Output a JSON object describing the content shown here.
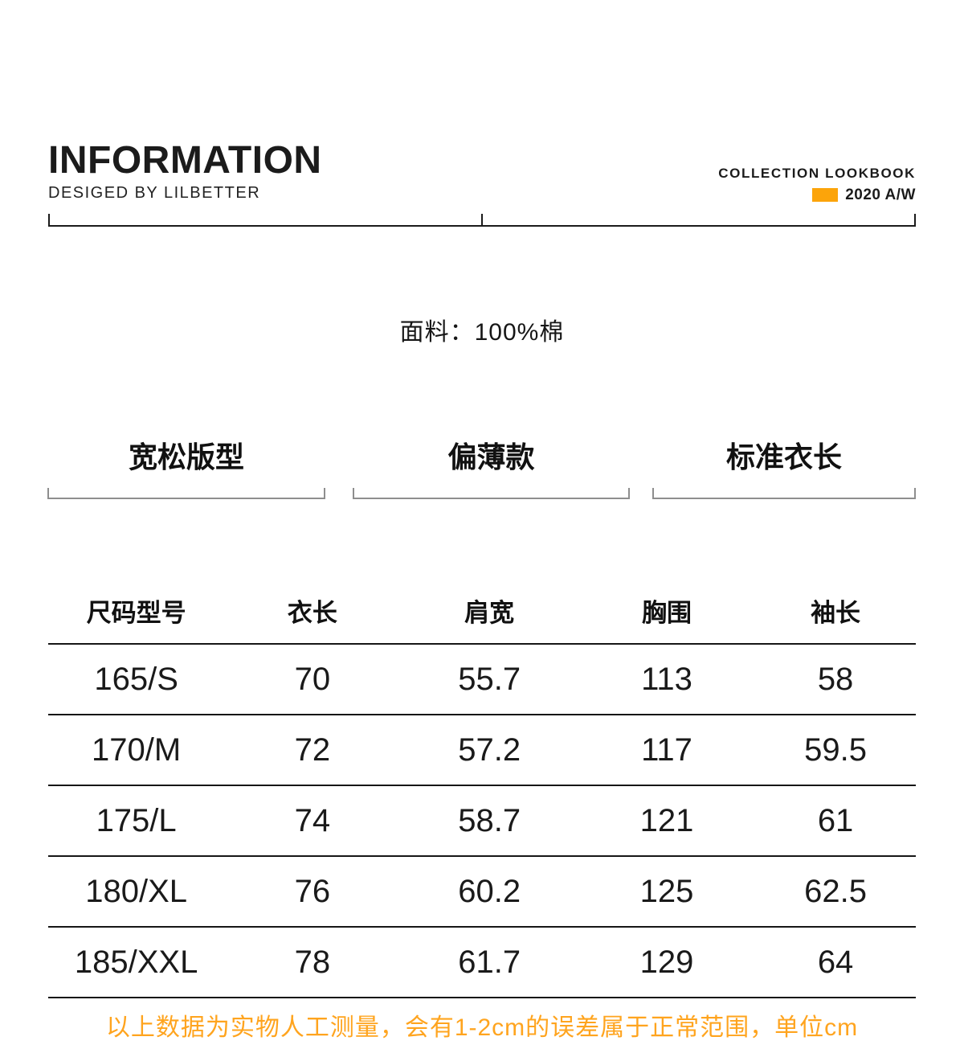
{
  "accent_color": "#FCA40A",
  "note_color": "#FFA41E",
  "header": {
    "title": "INFORMATION",
    "subtitle": "DESIGED BY LILBETTER",
    "collection": "COLLECTION LOOKBOOK",
    "season": "2020 A/W"
  },
  "fabric": {
    "label": "面料：100%棉"
  },
  "features": [
    "宽松版型",
    "偏薄款",
    "标准衣长"
  ],
  "size_table": {
    "columns": [
      "尺码型号",
      "衣长",
      "肩宽",
      "胸围",
      "袖长"
    ],
    "rows": [
      [
        "165/S",
        "70",
        "55.7",
        "113",
        "58"
      ],
      [
        "170/M",
        "72",
        "57.2",
        "117",
        "59.5"
      ],
      [
        "175/L",
        "74",
        "58.7",
        "121",
        "61"
      ],
      [
        "180/XL",
        "76",
        "60.2",
        "125",
        "62.5"
      ],
      [
        "185/XXL",
        "78",
        "61.7",
        "129",
        "64"
      ]
    ]
  },
  "note": "以上数据为实物人工测量，会有1-2cm的误差属于正常范围，单位cm"
}
